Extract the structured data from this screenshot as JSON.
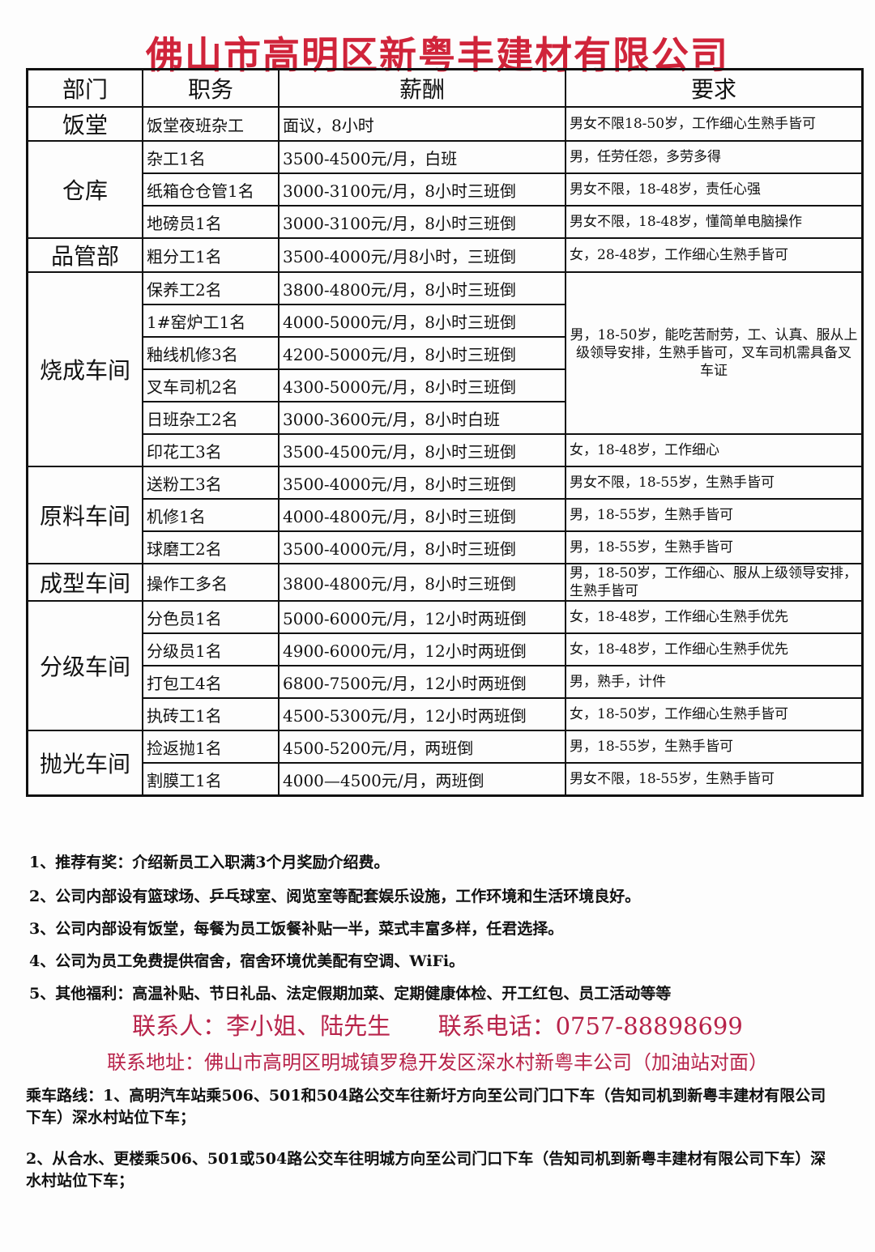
{
  "title": "佛山市高明区新粤丰建材有限公司",
  "headers": [
    "部门",
    "职务",
    "薪酬",
    "要求"
  ],
  "departments": [
    {
      "name": "饭堂",
      "rows": [
        {
          "job": "饭堂夜班杂工",
          "pay": "面议，8小时",
          "req": "男女不限18-50岁，工作细心生熟手皆可"
        }
      ]
    },
    {
      "name": "仓库",
      "rows": [
        {
          "job": "杂工1名",
          "pay": "3500-4500元/月，白班",
          "req": "男，任劳任怨，多劳多得"
        },
        {
          "job": "纸箱仓仓管1名",
          "pay": "3000-3100元/月，8小时三班倒",
          "req": "男女不限，18-48岁，责任心强"
        },
        {
          "job": "地磅员1名",
          "pay": "3000-3100元/月，8小时三班倒",
          "req": "男女不限，18-48岁，懂简单电脑操作"
        }
      ]
    },
    {
      "name": "品管部",
      "rows": [
        {
          "job": "粗分工1名",
          "pay": "3500-4000元/月8小时，三班倒",
          "req": "女，28-48岁，工作细心生熟手皆可"
        }
      ]
    },
    {
      "name": "烧成车间",
      "shared_req": "男，18-50岁，能吃苦耐劳，工、认真、服从上级领导安排，生熟手皆可，叉车司机需具备叉车证",
      "shared_count": 5,
      "rows": [
        {
          "job": "保养工2名",
          "pay": "3800-4800元/月，8小时三班倒"
        },
        {
          "job": "1#窑炉工1名",
          "pay": "4000-5000元/月，8小时三班倒"
        },
        {
          "job": "釉线机修3名",
          "pay": "4200-5000元/月，8小时三班倒"
        },
        {
          "job": "叉车司机2名",
          "pay": "4300-5000元/月，8小时三班倒"
        },
        {
          "job": "日班杂工2名",
          "pay": "3000-3600元/月，8小时白班"
        },
        {
          "job": "印花工3名",
          "pay": "3500-4500元/月，8小时三班倒",
          "req": "女，18-48岁，工作细心"
        }
      ]
    },
    {
      "name": "原料车间",
      "rows": [
        {
          "job": "送粉工3名",
          "pay": "3500-4000元/月，8小时三班倒",
          "req": "男女不限，18-55岁，生熟手皆可"
        },
        {
          "job": "机修1名",
          "pay": "4000-4800元/月，8小时三班倒",
          "req": "男，18-55岁，生熟手皆可"
        },
        {
          "job": "球磨工2名",
          "pay": "3500-4000元/月，8小时三班倒",
          "req": "男，18-55岁，生熟手皆可"
        }
      ]
    },
    {
      "name": "成型车间",
      "rows": [
        {
          "job": "操作工多名",
          "pay": "3800-4800元/月，8小时三班倒",
          "req": "男，18-50岁，工作细心、服从上级领导安排，生熟手皆可"
        }
      ]
    },
    {
      "name": "分级车间",
      "rows": [
        {
          "job": "分色员1名",
          "pay": "5000-6000元/月，12小时两班倒",
          "req": "女，18-48岁，工作细心生熟手优先"
        },
        {
          "job": "分级员1名",
          "pay": "4900-6000元/月，12小时两班倒",
          "req": "女，18-48岁，工作细心生熟手优先"
        },
        {
          "job": "打包工4名",
          "pay": "6800-7500元/月，12小时两班倒",
          "req": "男，熟手，计件"
        },
        {
          "job": "执砖工1名",
          "pay": "4500-5300元/月，12小时两班倒",
          "req": "女，18-50岁，工作细心生熟手皆可"
        }
      ]
    },
    {
      "name": "抛光车间",
      "rows": [
        {
          "job": "捡返抛1名",
          "pay": "4500-5200元/月，两班倒",
          "req": "男，18-55岁，生熟手皆可"
        },
        {
          "job": "割膜工1名",
          "pay": "4000—4500元/月，两班倒",
          "req": "男女不限，18-55岁，生熟手皆可"
        }
      ]
    }
  ],
  "notes": [
    "1、推荐有奖：介绍新员工入职满3个月奖励介绍费。",
    "2、公司内部设有篮球场、乒乓球室、阅览室等配套娱乐设施，工作环境和生活环境良好。",
    "3、公司内部设有饭堂，每餐为员工饭餐补贴一半，菜式丰富多样，任君选择。",
    "4、公司为员工免费提供宿舍，宿舍环境优美配有空调、WiFi。",
    "5、其他福利：高温补贴、节日礼品、法定假期加菜、定期健康体检、开工红包、员工活动等等"
  ],
  "contact": {
    "person": "联系人：李小姐、陆先生",
    "phone": "联系电话：0757-88898699",
    "address": "联系地址：佛山市高明区明城镇罗稳开发区深水村新粤丰公司（加油站对面）"
  },
  "routes": [
    "乘车路线：1、高明汽车站乘506、501和504路公交车往新圩方向至公司门口下车（告知司机到新粤丰建材有限公司下车）深水村站位下车；",
    "2、从合水、更楼乘506、501或504路公交车往明城方向至公司门口下车（告知司机到新粤丰建材有限公司下车）深水村站位下车；"
  ],
  "colors": {
    "title": "#d0243a",
    "contact": "#b8234a"
  }
}
